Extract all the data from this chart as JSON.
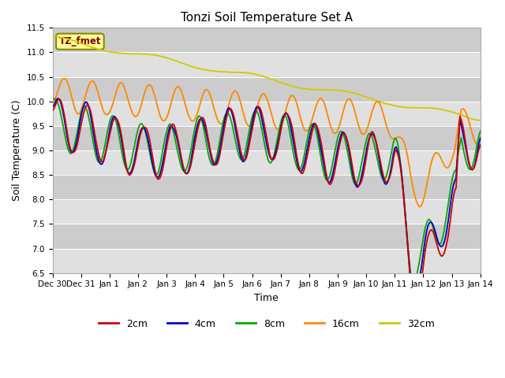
{
  "title": "Tonzi Soil Temperature Set A",
  "xlabel": "Time",
  "ylabel": "Soil Temperature (C)",
  "ylim": [
    6.5,
    11.5
  ],
  "yticks": [
    6.5,
    7.0,
    7.5,
    8.0,
    8.5,
    9.0,
    9.5,
    10.0,
    10.5,
    11.0,
    11.5
  ],
  "colors": {
    "2cm": "#cc0000",
    "4cm": "#0000cc",
    "8cm": "#00aa00",
    "16cm": "#ff8800",
    "32cm": "#cccc00"
  },
  "bg_color": "#e0e0e0",
  "band_color": "#cccccc",
  "label_text": "TZ_fmet",
  "label_fgcolor": "#880000",
  "label_bgcolor": "#ffff99",
  "label_edgecolor": "#888800",
  "n_points": 336,
  "start_day": 0,
  "end_day": 15,
  "xtick_positions": [
    0,
    1,
    2,
    3,
    4,
    5,
    6,
    7,
    8,
    9,
    10,
    11,
    12,
    13,
    14,
    15
  ],
  "xtick_labels": [
    "Dec 30",
    "Dec 31",
    "Jan 1",
    "Jan 2",
    "Jan 3",
    "Jan 4",
    "Jan 5",
    "Jan 6",
    "Jan 7",
    "Jan 8",
    "Jan 9",
    "Jan 10",
    "Jan 11",
    "Jan 12",
    "Jan 13",
    "Jan 14"
  ]
}
